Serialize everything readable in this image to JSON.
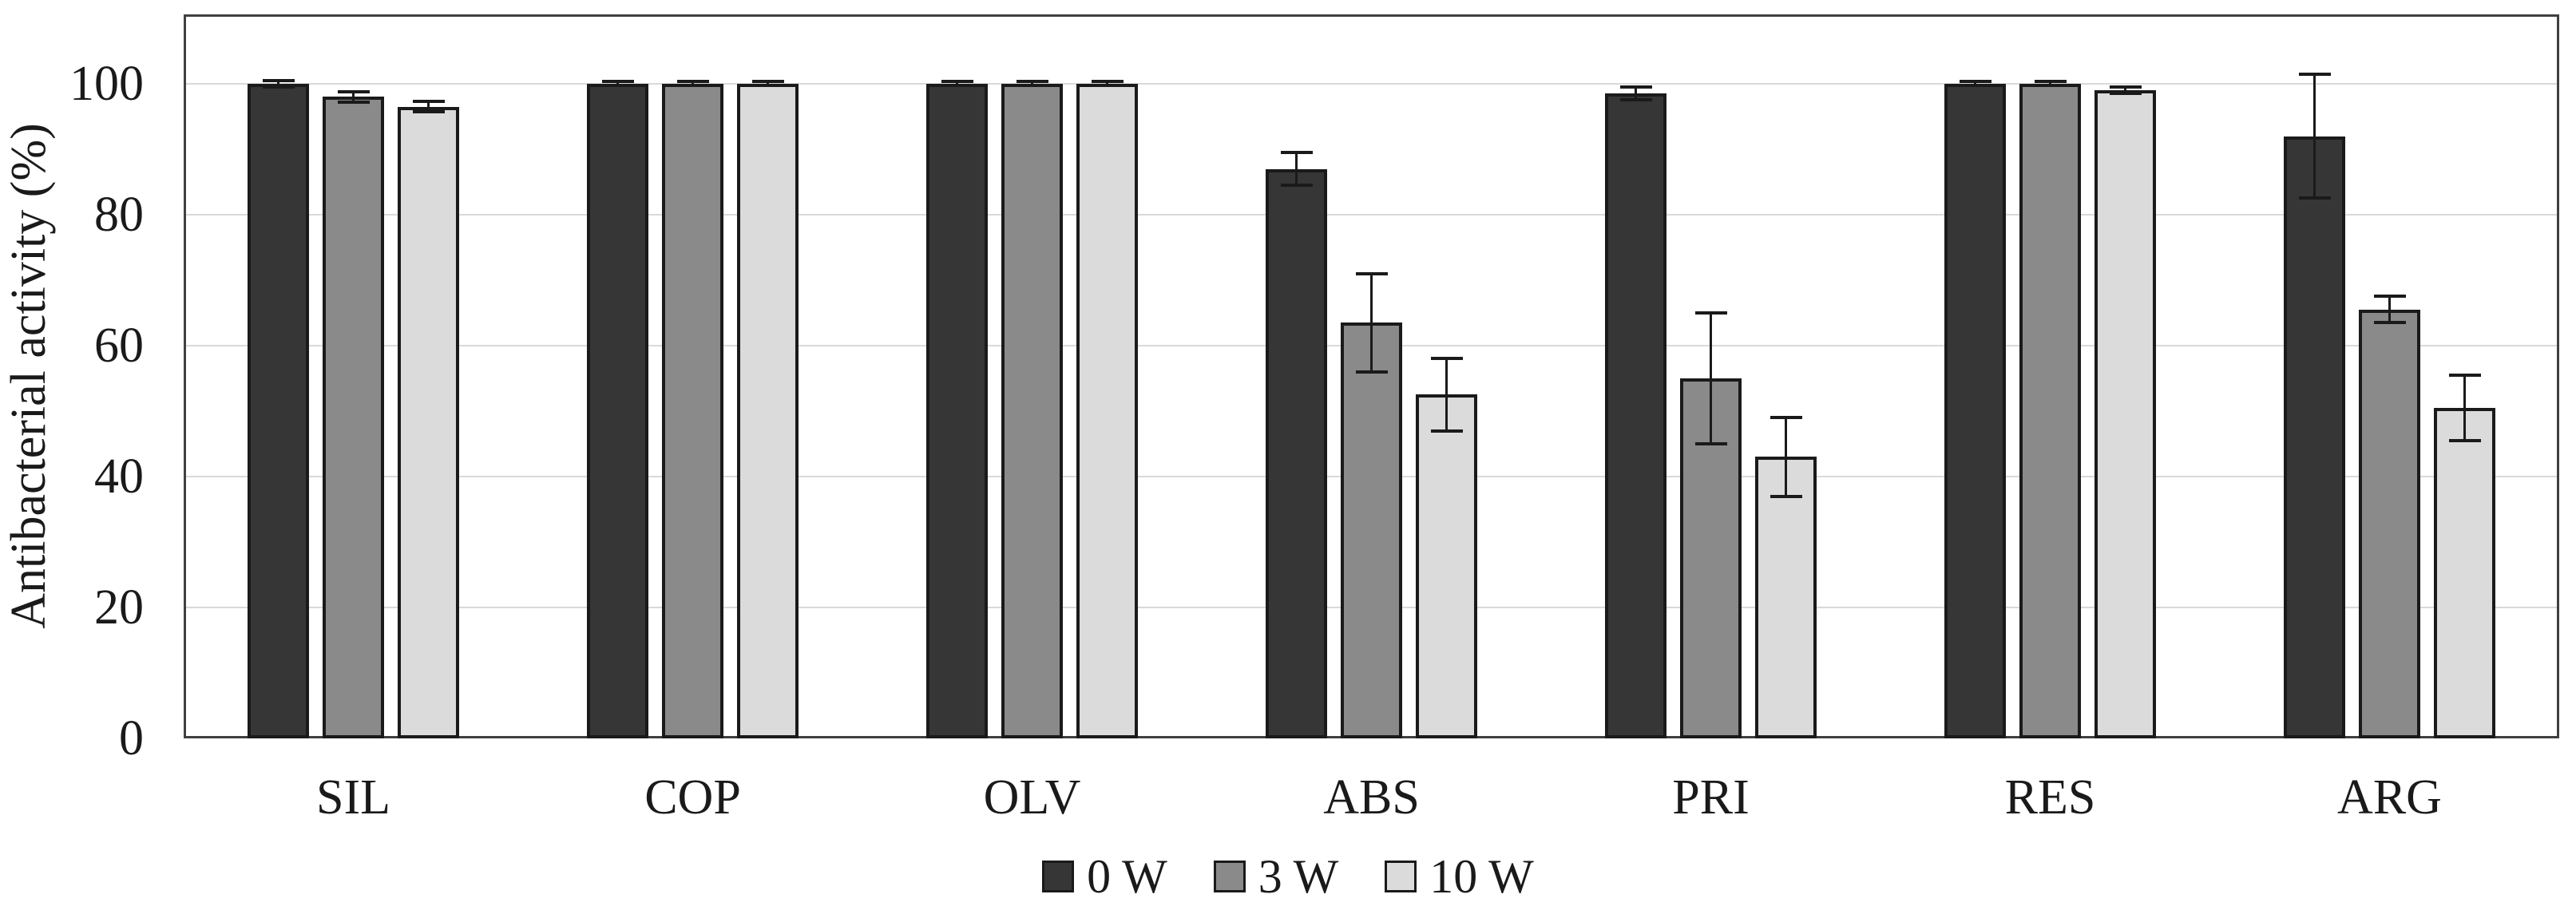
{
  "figure": {
    "background": "#ffffff",
    "y_axis_title": "Antibacterial activity (%)"
  },
  "colors": {
    "grid": "#d9d9d9",
    "frame": "#404040",
    "error_bar": "#1a1a1a",
    "text": "#1a1a1a",
    "background": "#ffffff"
  },
  "legend": {
    "position": "bottom-center",
    "items": [
      {
        "label": "0 W",
        "color": "#363636"
      },
      {
        "label": "3 W",
        "color": "#8a8a8a"
      },
      {
        "label": "10 W",
        "color": "#dbdbdb"
      }
    ]
  },
  "chart_data": {
    "type": "bar",
    "title": "",
    "xlabel": "",
    "ylabel": "Antibacterial activity (%)",
    "ylim": [
      0,
      110.6
    ],
    "yticks": [
      0,
      20,
      40,
      60,
      80,
      100
    ],
    "grid": true,
    "legend_position": "bottom",
    "categories": [
      "SIL",
      "COP",
      "OLV",
      "ABS",
      "PRI",
      "RES",
      "ARG"
    ],
    "series": [
      {
        "name": "0 W",
        "color": "#363636",
        "values": [
          100,
          100,
          100,
          87,
          98.5,
          100,
          92
        ],
        "errors": [
          0.5,
          0.3,
          0.3,
          2.5,
          1,
          0.3,
          9.5
        ]
      },
      {
        "name": "3 W",
        "color": "#8a8a8a",
        "values": [
          98,
          100,
          100,
          63.5,
          55,
          100,
          65.5
        ],
        "errors": [
          0.8,
          0.3,
          0.3,
          7.5,
          10,
          0.3,
          2
        ]
      },
      {
        "name": "10 W",
        "color": "#dbdbdb",
        "values": [
          96.5,
          100,
          100,
          52.5,
          43,
          99,
          50.5
        ],
        "errors": [
          0.8,
          0.3,
          0.3,
          5.5,
          6,
          0.5,
          5
        ]
      }
    ]
  }
}
